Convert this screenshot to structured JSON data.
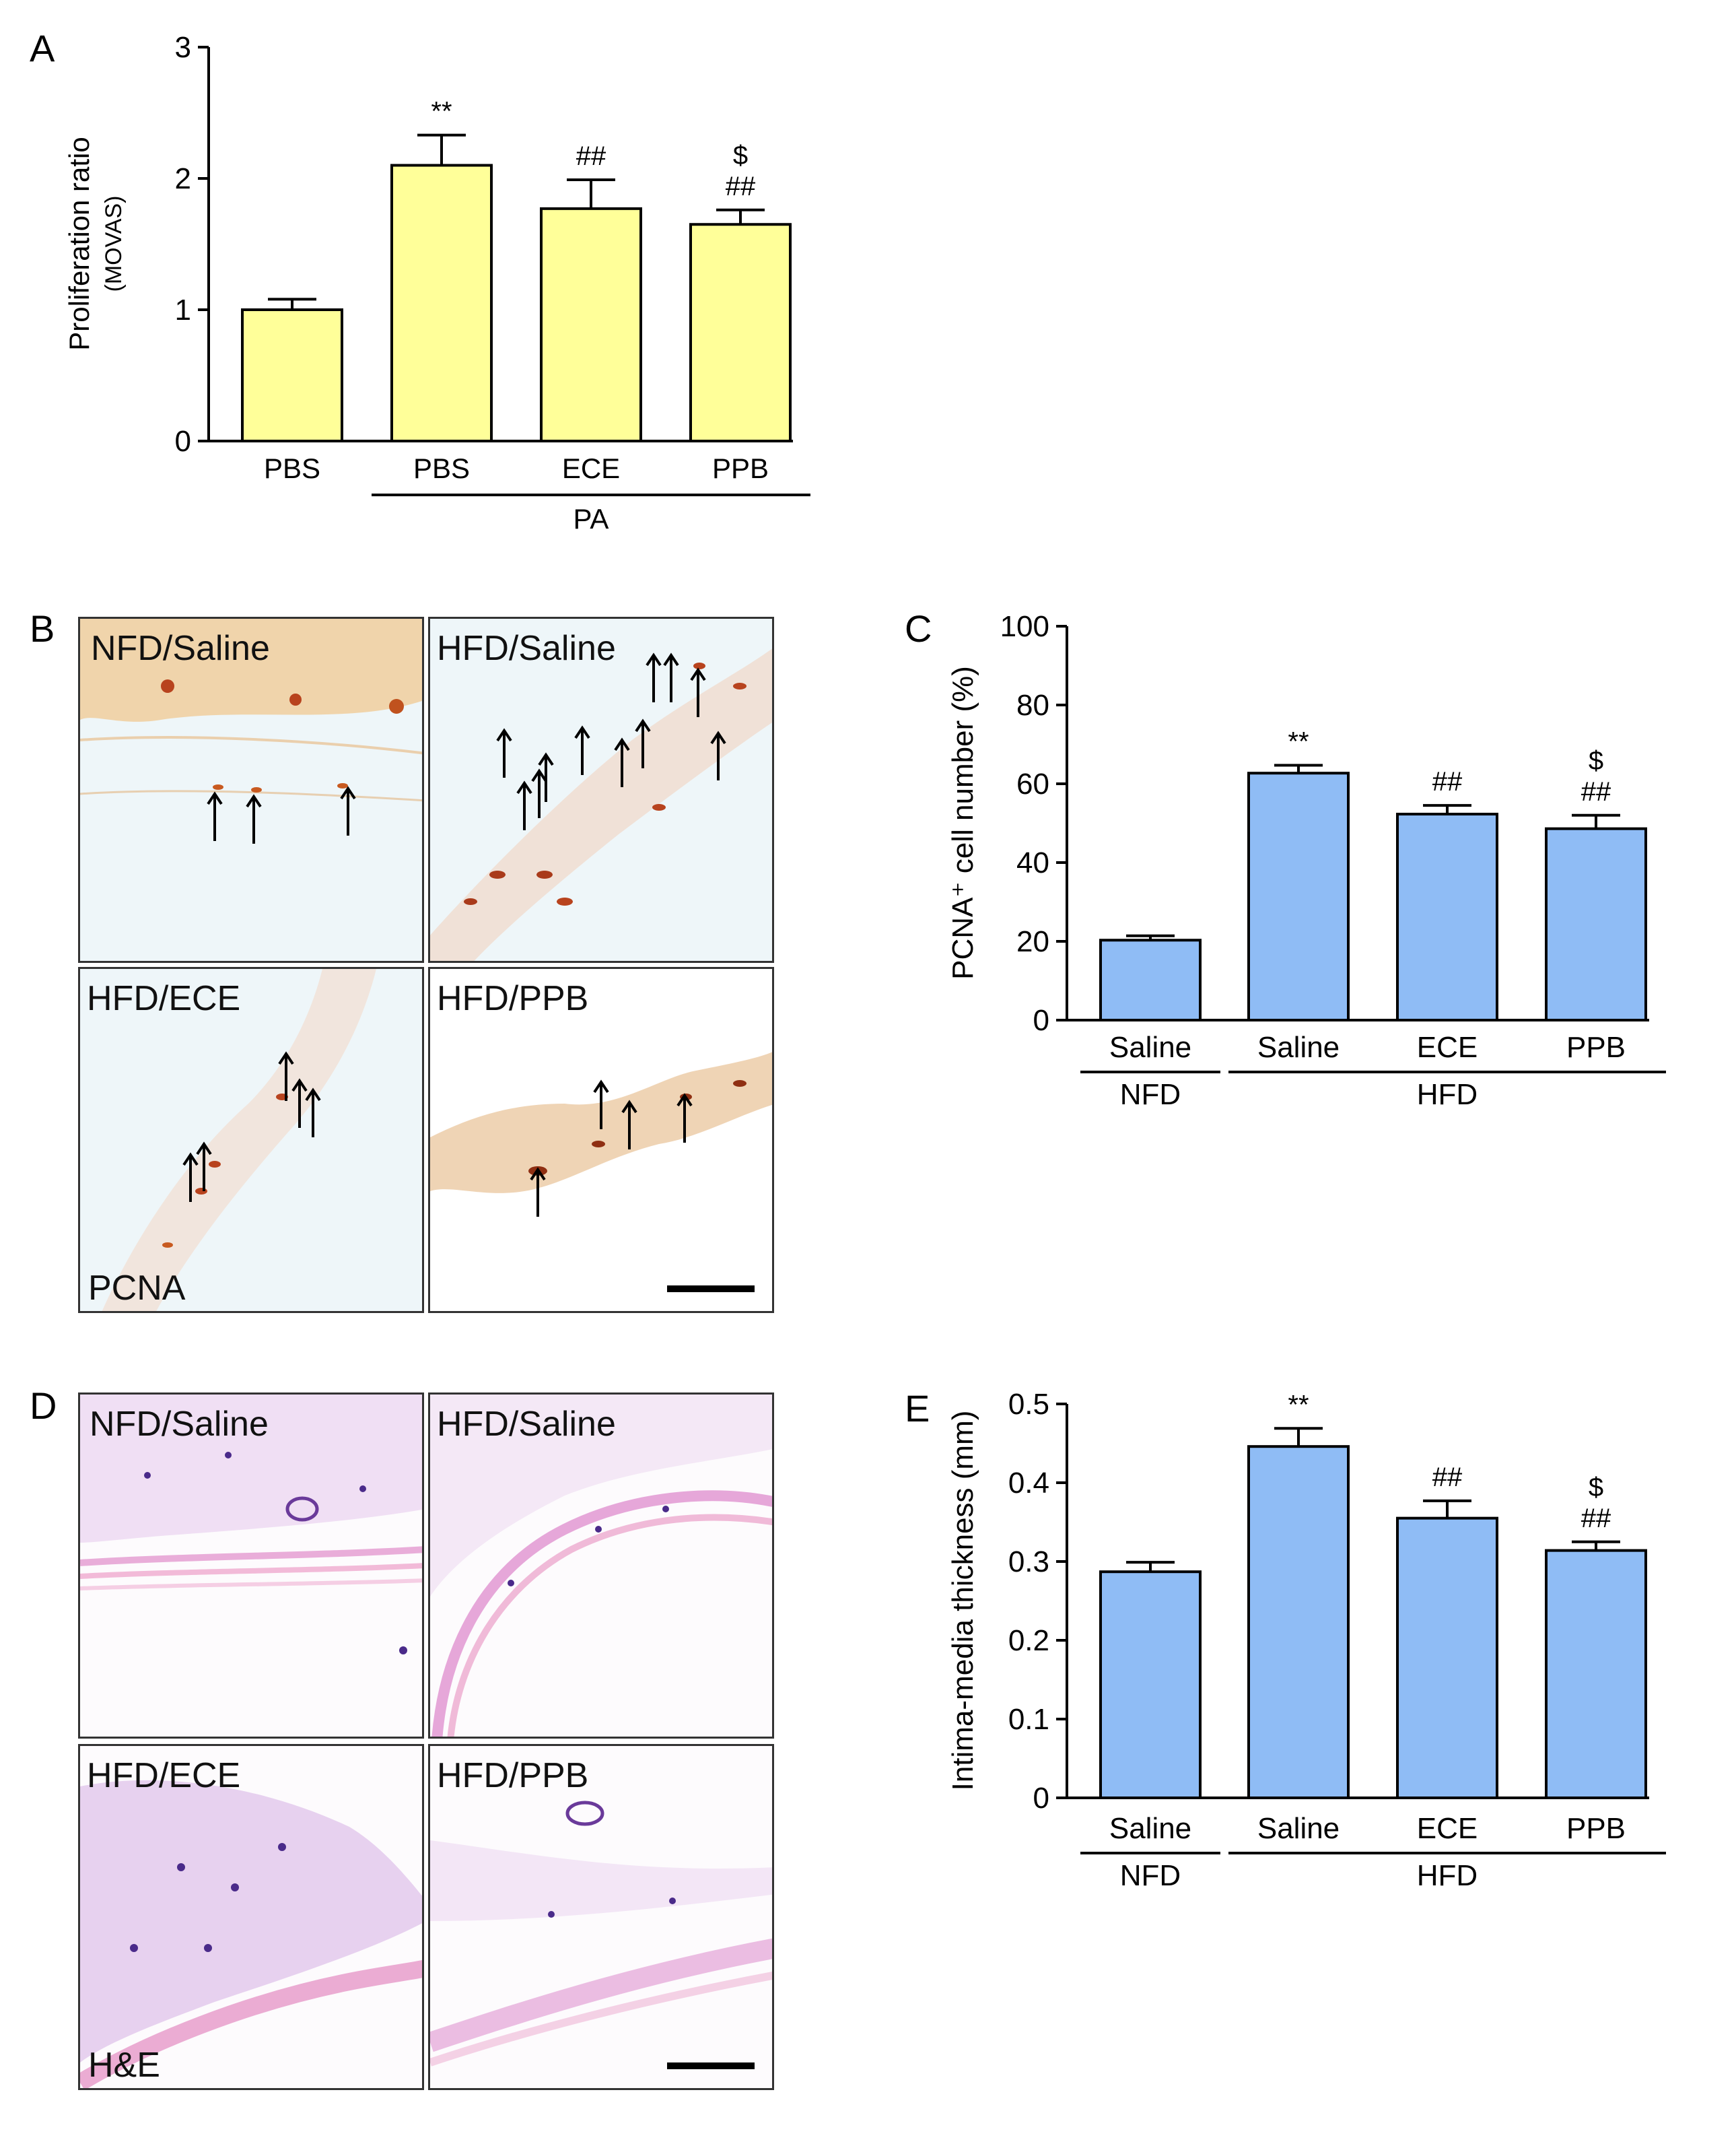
{
  "panels": {
    "A": "A",
    "B": "B",
    "C": "C",
    "D": "D",
    "E": "E"
  },
  "micrographs_B": {
    "stain": "PCNA",
    "labels": [
      "NFD/Saline",
      "HFD/Saline",
      "HFD/ECE",
      "HFD/PPB"
    ]
  },
  "micrographs_D": {
    "stain": "H&E",
    "labels": [
      "NFD/Saline",
      "HFD/Saline",
      "HFD/ECE",
      "HFD/PPB"
    ]
  },
  "colors": {
    "yellow_bar": "#ffff99",
    "blue_bar": "#8fbcf5",
    "pcna_bg": "#edf6fa",
    "he_bg": "#fbf8fc"
  },
  "chart_data": [
    {
      "id": "A",
      "type": "bar",
      "ylabel": "Proliferation ratio",
      "ylabel_sub": "(MOVAS)",
      "ylim": [
        0,
        3
      ],
      "yticks": [
        "0",
        "1",
        "2",
        "3"
      ],
      "categories": [
        "PBS",
        "PBS",
        "ECE",
        "PPB"
      ],
      "values": [
        1.0,
        2.1,
        1.77,
        1.65
      ],
      "errors": [
        0.08,
        0.23,
        0.22,
        0.11
      ],
      "annotations": [
        [],
        [
          "**"
        ],
        [
          "##"
        ],
        [
          "$",
          "##"
        ]
      ],
      "groups": [
        {
          "label": "PA",
          "from": 1,
          "to": 3
        }
      ],
      "bar_color": "#ffff99"
    },
    {
      "id": "C",
      "type": "bar",
      "ylabel": "PCNA⁺ cell number (%)",
      "ylim": [
        0,
        100
      ],
      "yticks": [
        "0",
        "20",
        "40",
        "60",
        "80",
        "100"
      ],
      "categories": [
        "Saline",
        "Saline",
        "ECE",
        "PPB"
      ],
      "values": [
        20.3,
        62.7,
        52.3,
        48.6
      ],
      "errors": [
        1.1,
        2.0,
        2.2,
        3.4
      ],
      "annotations": [
        [],
        [
          "**"
        ],
        [
          "##"
        ],
        [
          "$",
          "##"
        ]
      ],
      "groups": [
        {
          "label": "NFD",
          "from": 0,
          "to": 0
        },
        {
          "label": "HFD",
          "from": 1,
          "to": 3
        }
      ],
      "bar_color": "#8fbcf5"
    },
    {
      "id": "E",
      "type": "bar",
      "ylabel": "Intima-media thickness (mm)",
      "ylim": [
        0,
        0.5
      ],
      "yticks": [
        "0",
        "0.1",
        "0.2",
        "0.3",
        "0.4",
        "0.5"
      ],
      "categories": [
        "Saline",
        "Saline",
        "ECE",
        "PPB"
      ],
      "values": [
        0.287,
        0.446,
        0.355,
        0.314
      ],
      "errors": [
        0.012,
        0.023,
        0.022,
        0.011
      ],
      "annotations": [
        [],
        [
          "**"
        ],
        [
          "##"
        ],
        [
          "$",
          "##"
        ]
      ],
      "groups": [
        {
          "label": "NFD",
          "from": 0,
          "to": 0
        },
        {
          "label": "HFD",
          "from": 1,
          "to": 3
        }
      ],
      "bar_color": "#8fbcf5"
    }
  ]
}
